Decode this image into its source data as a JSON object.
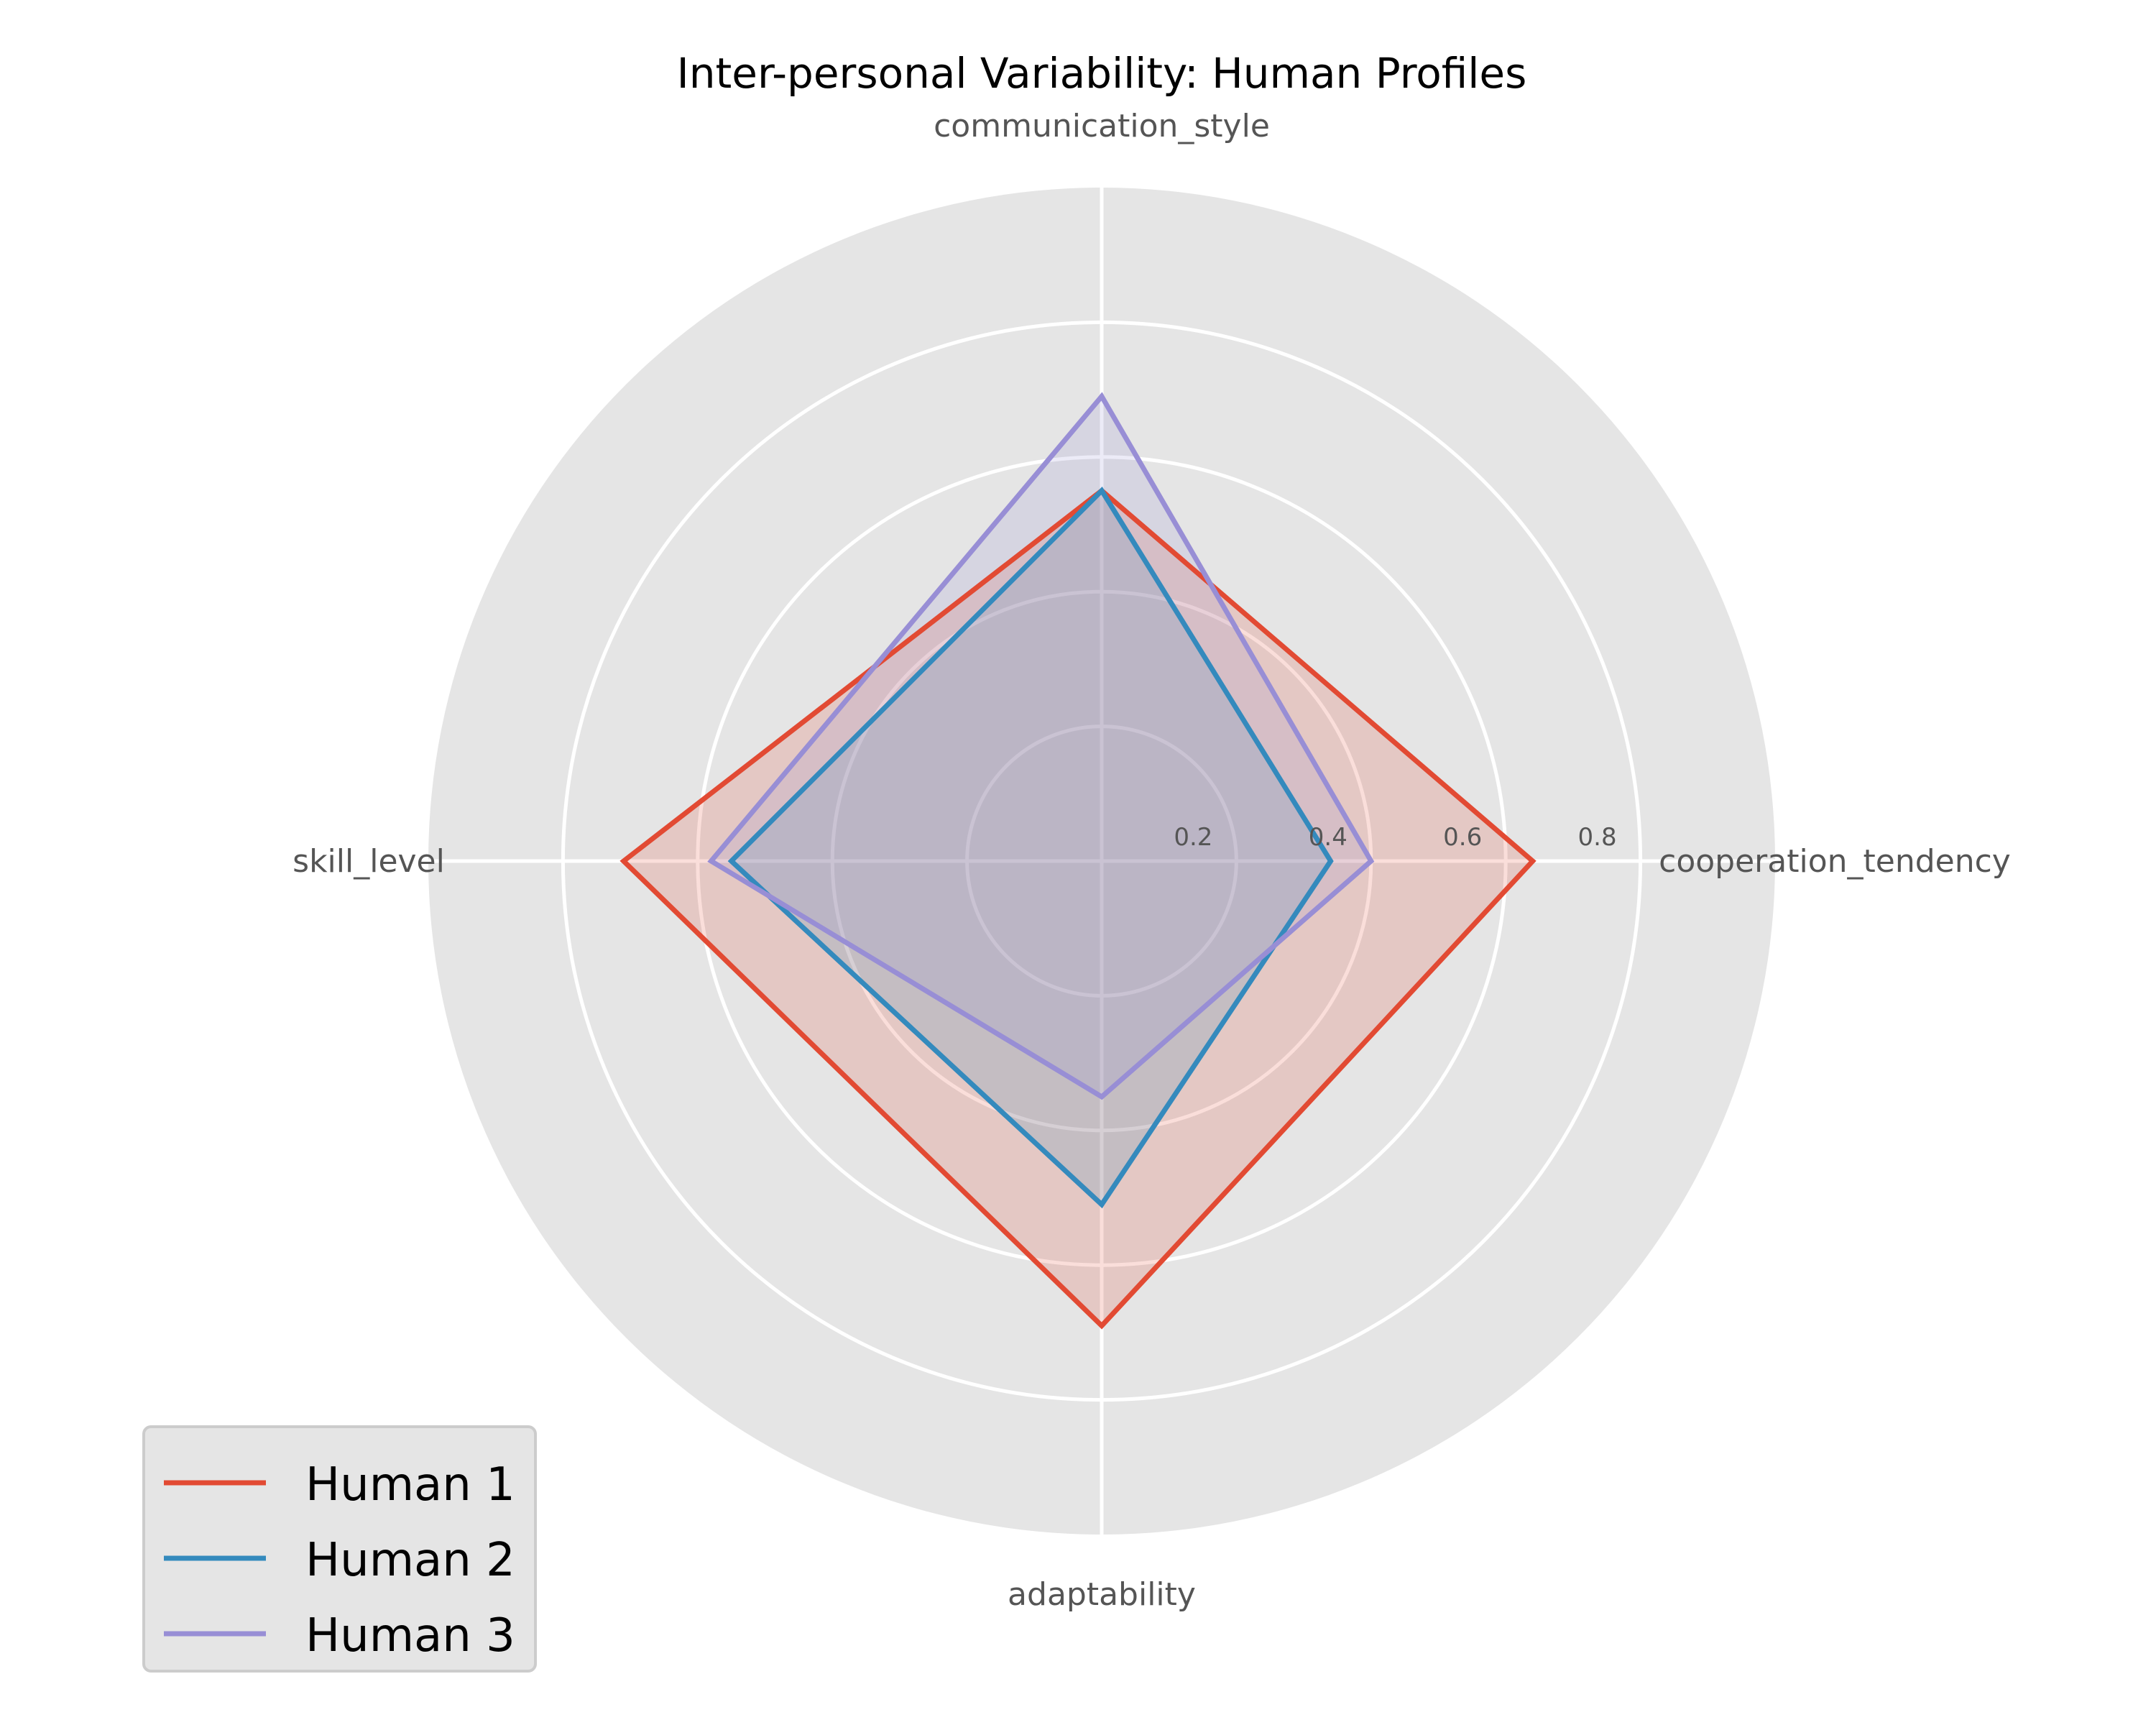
{
  "chart_data": {
    "type": "radar",
    "title": "Inter-personal Variability: Human Profiles",
    "axes": [
      "communication_style",
      "cooperation_tendency",
      "adaptability",
      "skill_level"
    ],
    "rlim": [
      0,
      1.0
    ],
    "rticks": [
      0.2,
      0.4,
      0.6,
      0.8
    ],
    "rtick_labels": [
      "0.2",
      "0.4",
      "0.6",
      "0.8"
    ],
    "grid": true,
    "legend_position": "lower-left",
    "series": [
      {
        "name": "Human 1",
        "color": "#E24A33",
        "values": [
          0.55,
          0.64,
          0.69,
          0.71
        ]
      },
      {
        "name": "Human 2",
        "color": "#348ABD",
        "values": [
          0.55,
          0.34,
          0.51,
          0.55
        ]
      },
      {
        "name": "Human 3",
        "color": "#988ED5",
        "values": [
          0.69,
          0.4,
          0.35,
          0.58
        ]
      }
    ],
    "colors": {
      "plot_background": "#E5E5E5",
      "grid": "#FFFFFF"
    }
  }
}
